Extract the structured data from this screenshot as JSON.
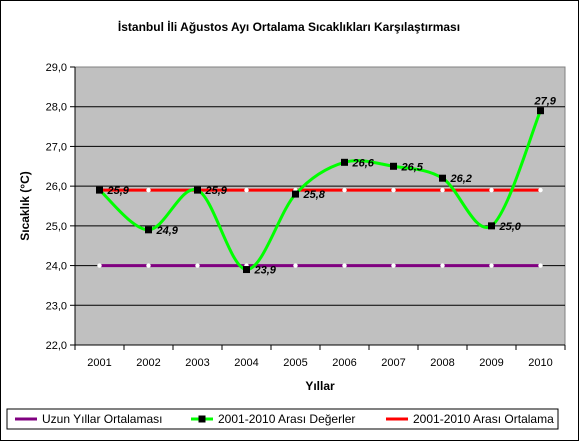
{
  "chart_data": {
    "type": "line",
    "title": "İstanbul İli Ağustos Ayı Ortalama Sıcaklıkları Karşılaştırması",
    "xlabel": "Yıllar",
    "ylabel": "Sıcaklık (°C)",
    "categories": [
      "2001",
      "2002",
      "2003",
      "2004",
      "2005",
      "2006",
      "2007",
      "2008",
      "2009",
      "2010"
    ],
    "ylim": [
      22.0,
      29.0
    ],
    "yticks": [
      "22,0",
      "23,0",
      "24,0",
      "25,0",
      "26,0",
      "27,0",
      "28,0",
      "29,0"
    ],
    "grid": true,
    "legend_position": "bottom",
    "series": [
      {
        "name": "Uzun Yıllar Ortalaması",
        "values": [
          24.0,
          24.0,
          24.0,
          24.0,
          24.0,
          24.0,
          24.0,
          24.0,
          24.0,
          24.0
        ],
        "color": "#800080"
      },
      {
        "name": "2001-2010 Arası Değerler",
        "values": [
          25.9,
          24.9,
          25.9,
          23.9,
          25.8,
          26.6,
          26.5,
          26.2,
          25.0,
          27.9
        ],
        "labels": [
          "25,9",
          "24,9",
          "25,9",
          "23,9",
          "25,8",
          "26,6",
          "26,5",
          "26,2",
          "25,0",
          "27,9"
        ],
        "color": "#00ff00",
        "marker_color": "#000000"
      },
      {
        "name": "2001-2010 Arası Ortalama",
        "values": [
          25.9,
          25.9,
          25.9,
          25.9,
          25.9,
          25.9,
          25.9,
          25.9,
          25.9,
          25.9
        ],
        "color": "#ff0000"
      }
    ],
    "plot_background": "#c0c0c0"
  }
}
